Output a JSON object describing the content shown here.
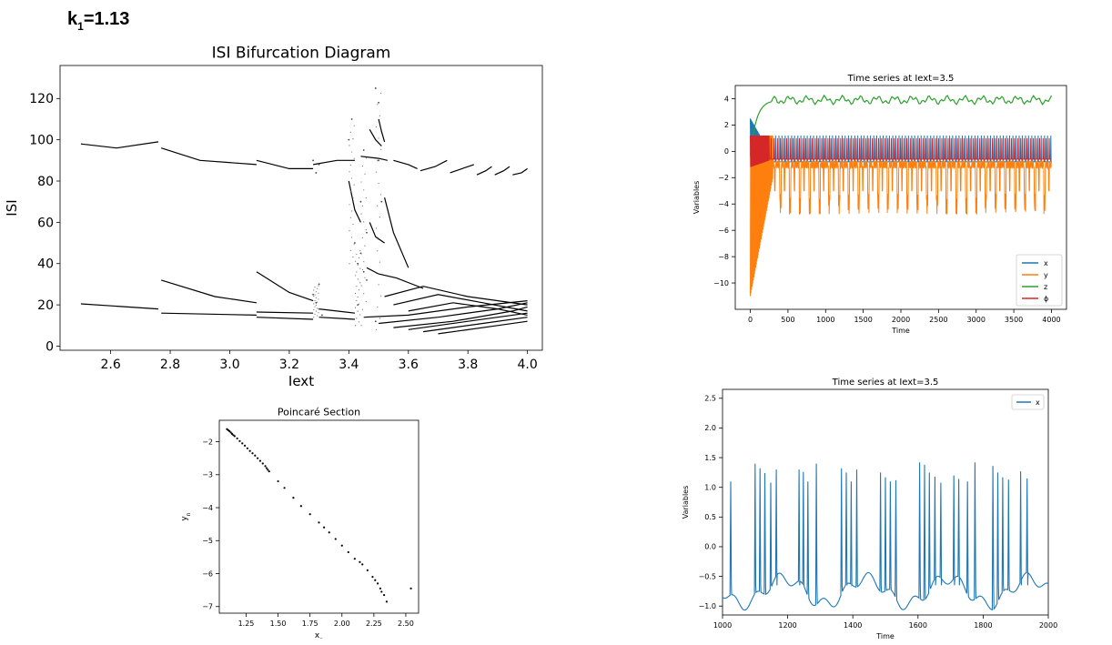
{
  "heading": {
    "k": "k",
    "sub": "1",
    "value": "=1.13"
  },
  "chart_data": [
    {
      "id": "bifurcation",
      "type": "scatter",
      "title": "ISI Bifurcation Diagram",
      "xlabel": "Iext",
      "ylabel": "ISI",
      "xlim": [
        2.43,
        4.05
      ],
      "ylim": [
        -2,
        136
      ],
      "xticks": [
        2.6,
        2.8,
        3.0,
        3.2,
        3.4,
        3.6,
        3.8,
        4.0
      ],
      "yticks": [
        0,
        20,
        40,
        60,
        80,
        100,
        120
      ],
      "xtick_labels": [
        "2.6",
        "2.8",
        "3.0",
        "3.2",
        "3.4",
        "3.6",
        "3.8",
        "4.0"
      ],
      "ytick_labels": [
        "0",
        "20",
        "40",
        "60",
        "80",
        "100",
        "120"
      ],
      "color": "#000000",
      "branches": [
        {
          "x": [
            2.5,
            2.62,
            2.76
          ],
          "y": [
            98,
            96,
            99
          ]
        },
        {
          "x": [
            2.77,
            2.9,
            3.09
          ],
          "y": [
            96,
            90,
            88
          ]
        },
        {
          "x": [
            3.09,
            3.2,
            3.28
          ],
          "y": [
            90,
            86,
            86
          ]
        },
        {
          "x": [
            3.28,
            3.36,
            3.42
          ],
          "y": [
            88,
            90,
            90
          ]
        },
        {
          "x": [
            3.44,
            3.5,
            3.53
          ],
          "y": [
            92,
            91,
            90
          ]
        },
        {
          "x": [
            3.55,
            3.6,
            3.63
          ],
          "y": [
            90,
            88,
            86
          ]
        },
        {
          "x": [
            3.64,
            3.69,
            3.73
          ],
          "y": [
            85,
            87,
            90
          ]
        },
        {
          "x": [
            3.74,
            3.78,
            3.82
          ],
          "y": [
            84,
            86,
            88
          ]
        },
        {
          "x": [
            3.83,
            3.86,
            3.88
          ],
          "y": [
            83,
            85,
            87
          ]
        },
        {
          "x": [
            3.89,
            3.92,
            3.94
          ],
          "y": [
            83,
            85,
            87
          ]
        },
        {
          "x": [
            3.95,
            3.98,
            4.0
          ],
          "y": [
            83,
            84,
            86
          ]
        },
        {
          "x": [
            2.5,
            2.76
          ],
          "y": [
            20.5,
            18
          ]
        },
        {
          "x": [
            2.77,
            3.09
          ],
          "y": [
            16,
            15
          ]
        },
        {
          "x": [
            2.77,
            2.95,
            3.09
          ],
          "y": [
            32,
            24,
            21
          ]
        },
        {
          "x": [
            3.09,
            3.28
          ],
          "y": [
            16.5,
            16
          ]
        },
        {
          "x": [
            3.09,
            3.2,
            3.28
          ],
          "y": [
            36,
            26,
            22
          ]
        },
        {
          "x": [
            3.09,
            3.28
          ],
          "y": [
            14,
            13
          ]
        },
        {
          "x": [
            3.3,
            3.42
          ],
          "y": [
            18,
            16
          ]
        },
        {
          "x": [
            3.3,
            3.42
          ],
          "y": [
            14,
            13
          ]
        },
        {
          "x": [
            3.45,
            3.6,
            3.8,
            4.0
          ],
          "y": [
            14,
            15,
            19,
            22
          ]
        },
        {
          "x": [
            3.5,
            3.7,
            3.9,
            4.0
          ],
          "y": [
            11,
            14,
            18,
            21
          ]
        },
        {
          "x": [
            3.55,
            3.75,
            3.95,
            4.0
          ],
          "y": [
            9,
            12,
            17,
            19
          ]
        },
        {
          "x": [
            3.6,
            3.8,
            4.0
          ],
          "y": [
            8,
            12,
            16
          ]
        },
        {
          "x": [
            3.65,
            3.85,
            4.0
          ],
          "y": [
            7,
            11,
            14
          ]
        },
        {
          "x": [
            3.7,
            3.9,
            4.0
          ],
          "y": [
            6,
            10,
            12
          ]
        },
        {
          "x": [
            3.52,
            3.65,
            3.8,
            4.0
          ],
          "y": [
            24,
            29,
            24,
            20
          ]
        },
        {
          "x": [
            3.55,
            3.7,
            3.85,
            4.0
          ],
          "y": [
            20,
            25,
            21,
            17
          ]
        },
        {
          "x": [
            3.6,
            3.75,
            3.9,
            4.0
          ],
          "y": [
            17,
            21,
            18,
            15
          ]
        },
        {
          "x": [
            3.46,
            3.5,
            3.56,
            3.65
          ],
          "y": [
            38,
            35,
            33,
            28
          ]
        },
        {
          "x": [
            3.52,
            3.55,
            3.6
          ],
          "y": [
            72,
            55,
            38
          ]
        },
        {
          "x": [
            3.47,
            3.49,
            3.52
          ],
          "y": [
            60,
            53,
            50
          ]
        },
        {
          "x": [
            3.47,
            3.49,
            3.51
          ],
          "y": [
            105,
            100,
            97
          ]
        },
        {
          "x": [
            3.5,
            3.51,
            3.52
          ],
          "y": [
            110,
            104,
            99
          ]
        },
        {
          "x": [
            3.4,
            3.42,
            3.44
          ],
          "y": [
            80,
            66,
            60
          ]
        }
      ],
      "scatter_x": [
        3.28,
        3.29,
        3.3,
        3.31,
        3.29,
        3.3,
        3.28,
        3.3,
        3.43,
        3.44,
        3.45,
        3.46,
        3.43,
        3.45,
        3.44,
        3.46,
        3.49,
        3.5,
        3.51,
        3.5,
        3.49,
        3.4,
        3.41,
        3.42
      ],
      "scatter_y": [
        25,
        21,
        18,
        15,
        84,
        88,
        90,
        30,
        40,
        45,
        36,
        32,
        20,
        95,
        70,
        55,
        125,
        118,
        70,
        90,
        12,
        100,
        110,
        50
      ]
    },
    {
      "id": "timeseries_all",
      "type": "line",
      "title": "Time series at Iext=3.5",
      "xlabel": "Time",
      "ylabel": "Variables",
      "xlim": [
        -200,
        4200
      ],
      "ylim": [
        -12,
        5
      ],
      "xticks": [
        0,
        500,
        1000,
        1500,
        2000,
        2500,
        3000,
        3500,
        4000
      ],
      "yticks": [
        4,
        2,
        0,
        -2,
        -4,
        -6,
        -8,
        -10
      ],
      "xtick_labels": [
        "0",
        "500",
        "1000",
        "1500",
        "2000",
        "2500",
        "3000",
        "3500",
        "4000"
      ],
      "ytick_labels": [
        "4",
        "2",
        "0",
        "−2",
        "−4",
        "−6",
        "−8",
        "−10"
      ],
      "legend": "lower-right",
      "series": [
        {
          "name": "x",
          "color": "#1f77b4",
          "base": -0.8,
          "spike": 1.2
        },
        {
          "name": "y",
          "color": "#ff7f0e",
          "base": -1.0,
          "low": -4.0
        },
        {
          "name": "z",
          "color": "#2ca02c",
          "level": 3.9
        },
        {
          "name": "ϕ",
          "color": "#d62728",
          "base": -0.6,
          "spike": 1.0
        }
      ]
    },
    {
      "id": "poincare",
      "type": "scatter",
      "title": "Poincaré Section",
      "xlabel": "x",
      "xlabel_sub": "n",
      "ylabel": "y",
      "ylabel_sub": "n",
      "xlim": [
        1.04,
        2.6
      ],
      "ylim": [
        -7.2,
        -1.35
      ],
      "xticks": [
        1.25,
        1.5,
        1.75,
        2.0,
        2.25,
        2.5
      ],
      "yticks": [
        -2,
        -3,
        -4,
        -5,
        -6,
        -7
      ],
      "xtick_labels": [
        "1.25",
        "1.50",
        "1.75",
        "2.00",
        "2.25",
        "2.50"
      ],
      "ytick_labels": [
        "−2",
        "−3",
        "−4",
        "−5",
        "−6",
        "−7"
      ],
      "color": "#000000",
      "x": [
        1.1,
        1.11,
        1.12,
        1.13,
        1.14,
        1.15,
        1.16,
        1.18,
        1.2,
        1.22,
        1.24,
        1.26,
        1.28,
        1.3,
        1.32,
        1.34,
        1.36,
        1.38,
        1.4,
        1.41,
        1.42,
        1.43,
        1.5,
        1.55,
        1.62,
        1.68,
        1.75,
        1.82,
        1.86,
        1.9,
        1.95,
        2.0,
        2.05,
        2.1,
        2.14,
        2.16,
        2.2,
        2.24,
        2.26,
        2.28,
        2.3,
        2.31,
        2.33,
        2.35,
        2.54
      ],
      "y": [
        -1.62,
        -1.65,
        -1.68,
        -1.72,
        -1.76,
        -1.8,
        -1.83,
        -1.9,
        -1.98,
        -2.05,
        -2.12,
        -2.2,
        -2.28,
        -2.35,
        -2.42,
        -2.5,
        -2.58,
        -2.66,
        -2.74,
        -2.8,
        -2.85,
        -2.9,
        -3.2,
        -3.4,
        -3.7,
        -3.95,
        -4.2,
        -4.45,
        -4.6,
        -4.75,
        -4.95,
        -5.15,
        -5.35,
        -5.55,
        -5.65,
        -5.72,
        -5.9,
        -6.1,
        -6.2,
        -6.3,
        -6.45,
        -6.55,
        -6.65,
        -6.85,
        -6.45
      ]
    },
    {
      "id": "timeseries_x",
      "type": "line",
      "title": "Time series at Iext=3.5",
      "xlabel": "Time",
      "ylabel": "Variables",
      "xlim": [
        1000,
        2000
      ],
      "ylim": [
        -1.15,
        2.65
      ],
      "xticks": [
        1000,
        1200,
        1400,
        1600,
        1800,
        2000
      ],
      "yticks": [
        2.5,
        2.0,
        1.5,
        1.0,
        0.5,
        0.0,
        -0.5,
        -1.0
      ],
      "xtick_labels": [
        "1000",
        "1200",
        "1400",
        "1600",
        "1800",
        "2000"
      ],
      "ytick_labels": [
        "2.5",
        "2.0",
        "1.5",
        "1.0",
        "0.5",
        "0.0",
        "−0.5",
        "−1.0"
      ],
      "legend": "top-right",
      "series": [
        {
          "name": "x",
          "color": "#1f77b4",
          "spike_times": [
            1025,
            1100,
            1115,
            1130,
            1148,
            1165,
            1235,
            1248,
            1262,
            1288,
            1365,
            1380,
            1395,
            1412,
            1485,
            1500,
            1515,
            1532,
            1605,
            1620,
            1635,
            1652,
            1670,
            1710,
            1725,
            1752,
            1775,
            1830,
            1845,
            1860,
            1878,
            1915,
            1935
          ],
          "spike_heights": [
            1.1,
            1.4,
            1.32,
            1.24,
            1.08,
            1.3,
            1.3,
            1.26,
            1.1,
            1.4,
            1.32,
            1.25,
            1.1,
            1.3,
            1.25,
            1.17,
            1.1,
            1.12,
            1.42,
            1.38,
            1.25,
            1.18,
            1.08,
            1.2,
            1.14,
            1.1,
            1.42,
            1.36,
            1.25,
            1.17,
            1.13,
            1.27,
            1.15
          ]
        }
      ]
    }
  ]
}
